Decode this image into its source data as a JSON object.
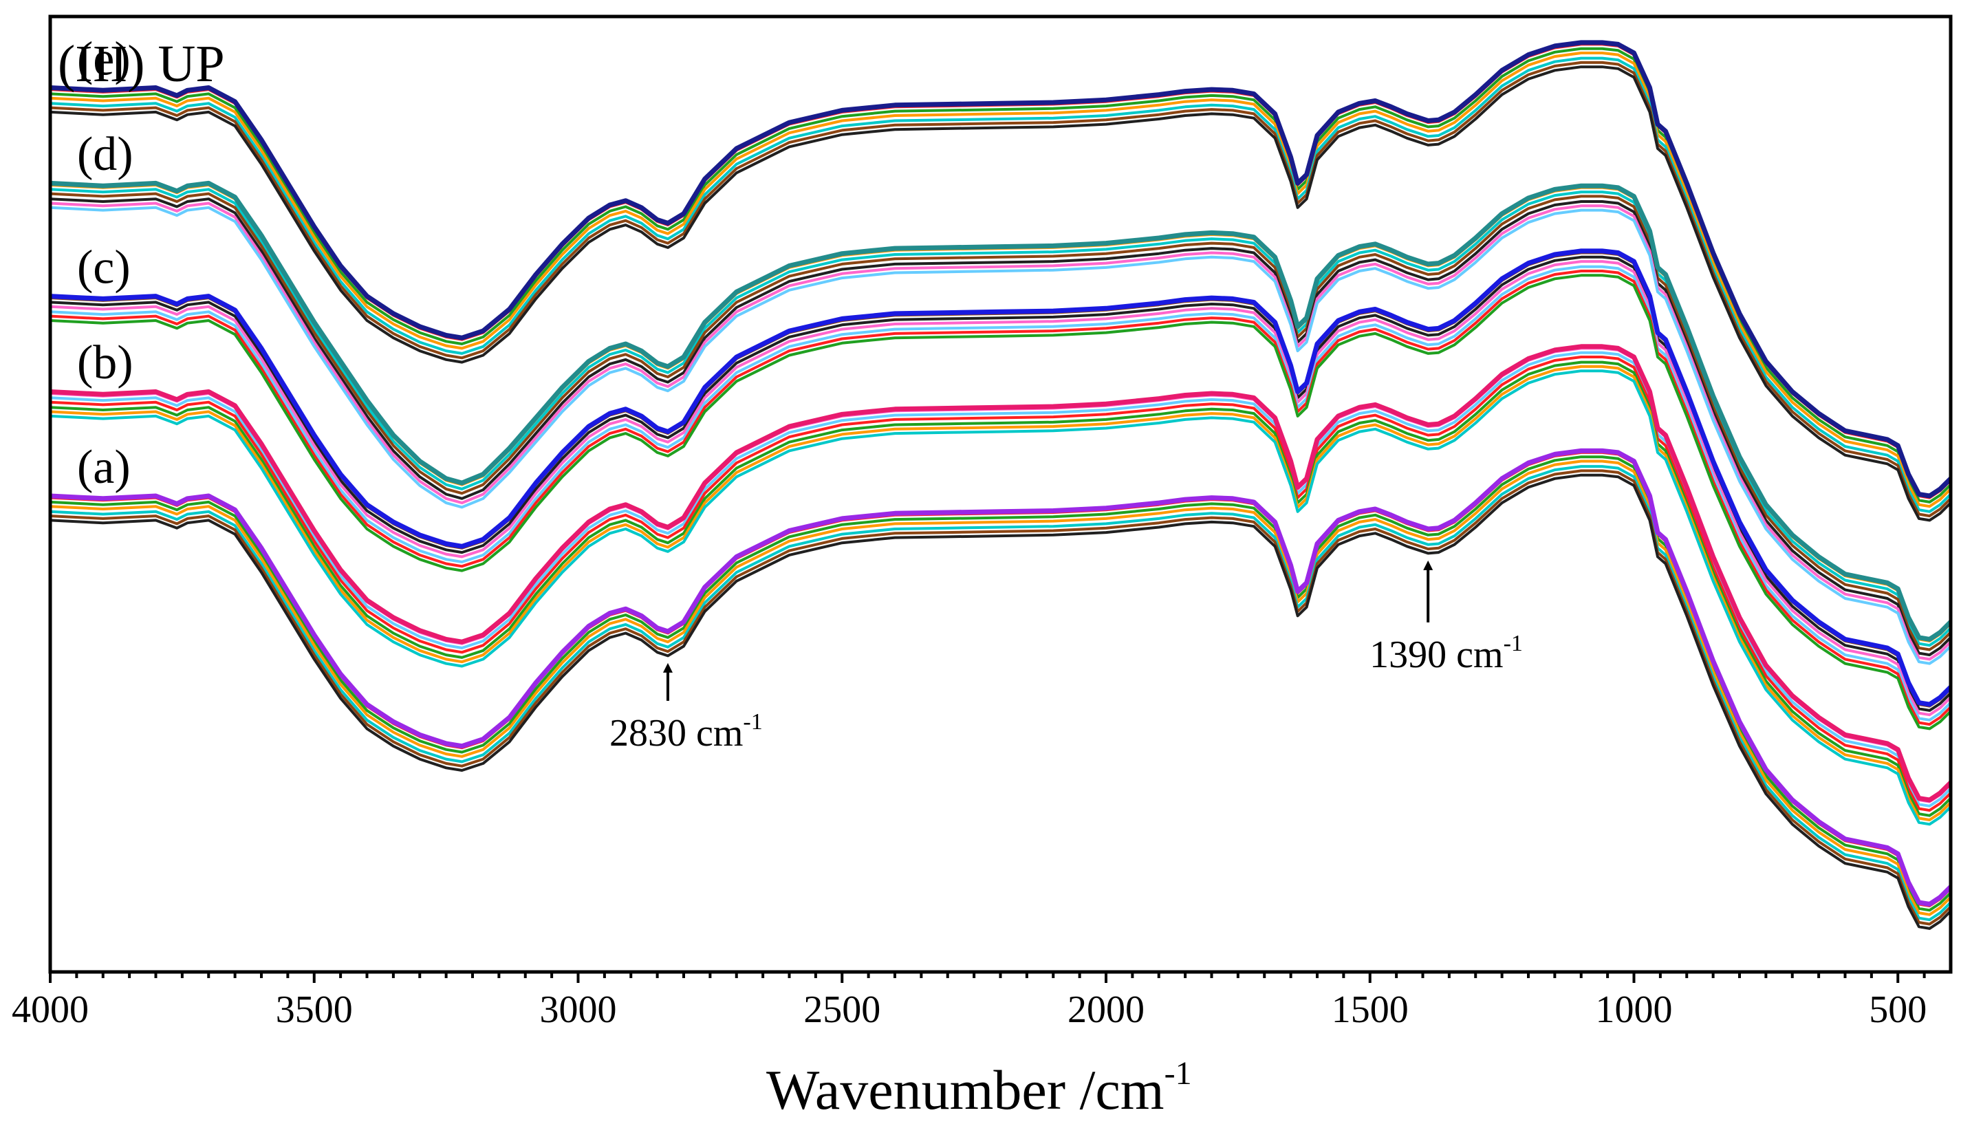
{
  "chart_data": {
    "type": "line",
    "title": "(III) UP",
    "xlabel": "Wavenumber /cm",
    "xlabel_sup": "-1",
    "ylabel": "",
    "xlim": [
      4000,
      400
    ],
    "x_reversed": true,
    "xticks": [
      4000,
      3500,
      3000,
      2500,
      2000,
      1500,
      1000,
      500
    ],
    "xtick_labels": [
      "4000",
      "3500",
      "3000",
      "2500",
      "2000",
      "1500",
      "1000",
      "500"
    ],
    "ylim": [
      0,
      11
    ],
    "y_axis_visible": false,
    "grid": false,
    "wavenumbers": [
      4000,
      3900,
      3800,
      3760,
      3740,
      3700,
      3650,
      3600,
      3550,
      3500,
      3450,
      3400,
      3350,
      3300,
      3250,
      3220,
      3180,
      3130,
      3080,
      3030,
      2980,
      2940,
      2910,
      2880,
      2850,
      2830,
      2800,
      2760,
      2700,
      2600,
      2500,
      2400,
      2300,
      2200,
      2100,
      2000,
      1900,
      1850,
      1800,
      1760,
      1720,
      1680,
      1650,
      1637,
      1620,
      1600,
      1560,
      1520,
      1490,
      1460,
      1430,
      1400,
      1390,
      1370,
      1340,
      1300,
      1250,
      1200,
      1150,
      1100,
      1060,
      1030,
      1000,
      970,
      955,
      940,
      900,
      850,
      800,
      750,
      700,
      650,
      600,
      560,
      520,
      500,
      480,
      460,
      440,
      420,
      400
    ],
    "series": [
      {
        "name": "(e)",
        "color": "#191c8c",
        "values": [
          10.0,
          9.97,
          10.0,
          9.91,
          9.97,
          10.0,
          9.84,
          9.4,
          8.9,
          8.4,
          7.95,
          7.6,
          7.4,
          7.25,
          7.15,
          7.12,
          7.2,
          7.45,
          7.85,
          8.2,
          8.5,
          8.65,
          8.7,
          8.62,
          8.48,
          8.44,
          8.55,
          8.95,
          9.3,
          9.6,
          9.74,
          9.8,
          9.81,
          9.82,
          9.83,
          9.86,
          9.92,
          9.96,
          9.98,
          9.97,
          9.93,
          9.7,
          9.2,
          8.9,
          9.0,
          9.45,
          9.72,
          9.82,
          9.85,
          9.78,
          9.7,
          9.64,
          9.62,
          9.63,
          9.72,
          9.92,
          10.2,
          10.38,
          10.48,
          10.52,
          10.52,
          10.5,
          10.4,
          10.0,
          9.58,
          9.5,
          8.9,
          8.1,
          7.4,
          6.85,
          6.5,
          6.25,
          6.05,
          6.0,
          5.95,
          5.88,
          5.55,
          5.32,
          5.3,
          5.38,
          5.5
        ]
      },
      {
        "name": "(d)",
        "color": "#238c8c",
        "values": [
          8.9,
          8.87,
          8.9,
          8.81,
          8.87,
          8.9,
          8.74,
          8.3,
          7.8,
          7.3,
          6.85,
          6.4,
          6.0,
          5.7,
          5.5,
          5.45,
          5.55,
          5.85,
          6.2,
          6.55,
          6.85,
          7.0,
          7.05,
          6.97,
          6.83,
          6.79,
          6.9,
          7.3,
          7.65,
          7.95,
          8.09,
          8.15,
          8.16,
          8.17,
          8.18,
          8.21,
          8.27,
          8.31,
          8.33,
          8.32,
          8.28,
          8.05,
          7.55,
          7.25,
          7.35,
          7.8,
          8.07,
          8.17,
          8.2,
          8.13,
          8.05,
          7.99,
          7.97,
          7.98,
          8.07,
          8.27,
          8.55,
          8.73,
          8.83,
          8.87,
          8.87,
          8.85,
          8.75,
          8.35,
          7.93,
          7.85,
          7.25,
          6.45,
          5.75,
          5.2,
          4.85,
          4.6,
          4.4,
          4.35,
          4.3,
          4.23,
          3.9,
          3.67,
          3.65,
          3.73,
          3.85
        ]
      },
      {
        "name": "(c)",
        "color": "#1a1ae0",
        "values": [
          7.6,
          7.57,
          7.6,
          7.51,
          7.57,
          7.6,
          7.44,
          7.0,
          6.5,
          6.0,
          5.55,
          5.2,
          5.0,
          4.85,
          4.75,
          4.72,
          4.8,
          5.05,
          5.45,
          5.8,
          6.1,
          6.25,
          6.3,
          6.22,
          6.08,
          6.04,
          6.15,
          6.55,
          6.9,
          7.2,
          7.34,
          7.4,
          7.41,
          7.42,
          7.43,
          7.46,
          7.52,
          7.56,
          7.58,
          7.57,
          7.53,
          7.3,
          6.8,
          6.5,
          6.6,
          7.05,
          7.32,
          7.42,
          7.45,
          7.38,
          7.3,
          7.24,
          7.22,
          7.23,
          7.32,
          7.52,
          7.8,
          7.98,
          8.08,
          8.12,
          8.12,
          8.1,
          8.0,
          7.6,
          7.18,
          7.1,
          6.5,
          5.7,
          5.0,
          4.45,
          4.1,
          3.85,
          3.65,
          3.6,
          3.55,
          3.48,
          3.15,
          2.92,
          2.9,
          2.98,
          3.1
        ]
      },
      {
        "name": "(b)",
        "color": "#e81a6e",
        "values": [
          6.5,
          6.47,
          6.5,
          6.41,
          6.47,
          6.5,
          6.34,
          5.9,
          5.4,
          4.9,
          4.45,
          4.1,
          3.9,
          3.75,
          3.65,
          3.62,
          3.7,
          3.95,
          4.35,
          4.7,
          5.0,
          5.15,
          5.2,
          5.12,
          4.98,
          4.94,
          5.05,
          5.45,
          5.8,
          6.1,
          6.24,
          6.3,
          6.31,
          6.32,
          6.33,
          6.36,
          6.42,
          6.46,
          6.48,
          6.47,
          6.43,
          6.2,
          5.7,
          5.4,
          5.5,
          5.95,
          6.22,
          6.32,
          6.35,
          6.28,
          6.2,
          6.14,
          6.12,
          6.13,
          6.22,
          6.42,
          6.7,
          6.88,
          6.98,
          7.02,
          7.02,
          7.0,
          6.9,
          6.5,
          6.08,
          6.0,
          5.4,
          4.6,
          3.9,
          3.35,
          3.0,
          2.75,
          2.55,
          2.5,
          2.45,
          2.38,
          2.05,
          1.82,
          1.8,
          1.88,
          2.0
        ]
      },
      {
        "name": "(a)",
        "color": "#9a28e6",
        "values": [
          5.3,
          5.27,
          5.3,
          5.21,
          5.27,
          5.3,
          5.14,
          4.7,
          4.2,
          3.7,
          3.25,
          2.9,
          2.7,
          2.55,
          2.45,
          2.42,
          2.5,
          2.75,
          3.15,
          3.5,
          3.8,
          3.95,
          4.0,
          3.92,
          3.78,
          3.74,
          3.85,
          4.25,
          4.6,
          4.9,
          5.04,
          5.1,
          5.11,
          5.12,
          5.13,
          5.16,
          5.22,
          5.26,
          5.28,
          5.27,
          5.23,
          5.0,
          4.5,
          4.2,
          4.3,
          4.75,
          5.02,
          5.12,
          5.15,
          5.08,
          5.0,
          4.94,
          4.92,
          4.93,
          5.02,
          5.22,
          5.5,
          5.68,
          5.78,
          5.82,
          5.82,
          5.8,
          5.7,
          5.3,
          4.88,
          4.8,
          4.2,
          3.4,
          2.7,
          2.15,
          1.8,
          1.55,
          1.35,
          1.3,
          1.25,
          1.18,
          0.85,
          0.62,
          0.6,
          0.68,
          0.8
        ]
      }
    ],
    "curve_labels": [
      "(e)",
      "(d)",
      "(c)",
      "(b)",
      "(a)"
    ],
    "annotations": [
      {
        "text": "2830 cm",
        "sup": "-1",
        "x": 2830
      },
      {
        "text": "1390 cm",
        "sup": "-1",
        "x": 1390
      }
    ],
    "band_colors": [
      "#ff2020",
      "#20a020",
      "#ff9900",
      "#00c8c8",
      "#8b4513",
      "#202020",
      "#ff66cc",
      "#66ccff"
    ]
  }
}
